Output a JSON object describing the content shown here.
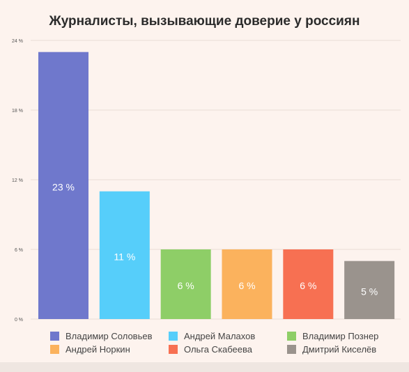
{
  "chart_data": {
    "type": "bar",
    "title": "Журналисты, вызывающие доверие у россиян",
    "categories": [
      "Владимир Соловьев",
      "Андрей Малахов",
      "Владимир Познер",
      "Андрей Норкин",
      "Ольга Скабеева",
      "Дмитрий Киселёв"
    ],
    "values": [
      23,
      11,
      6,
      6,
      6,
      5
    ],
    "value_labels": [
      "23 %",
      "11 %",
      "6 %",
      "6 %",
      "6 %",
      "5 %"
    ],
    "colors": [
      "#6f78cc",
      "#56cefa",
      "#8ece67",
      "#fbb25d",
      "#f77052",
      "#9a938d"
    ],
    "ylim": [
      0,
      24
    ],
    "yticks": [
      0,
      6,
      12,
      18,
      24
    ],
    "ytick_labels": [
      "0 %",
      "6 %",
      "12 %",
      "18 %",
      "24 %"
    ],
    "grid": true,
    "legend_position": "bottom"
  }
}
